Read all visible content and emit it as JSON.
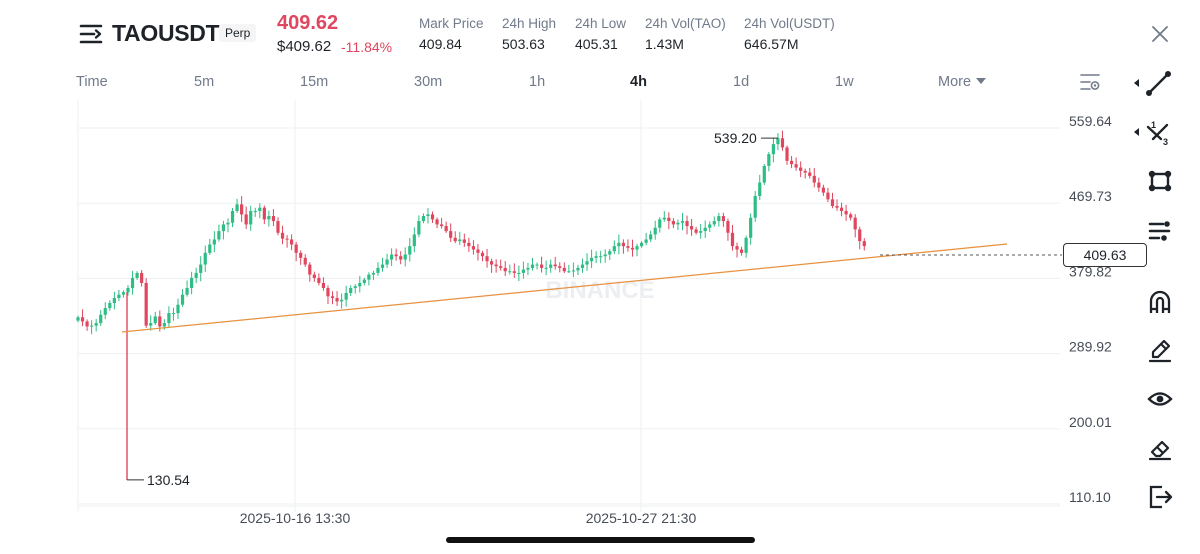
{
  "header": {
    "symbol": "TAOUSDT",
    "contract_type": "Perp",
    "last_price": "409.62",
    "usd_price": "$409.62",
    "change_pct": "-11.84%",
    "stats": [
      {
        "label": "Mark Price",
        "value": "409.84"
      },
      {
        "label": "24h High",
        "value": "503.63"
      },
      {
        "label": "24h Low",
        "value": "405.31"
      },
      {
        "label": "24h Vol(TAO)",
        "value": "1.43M"
      },
      {
        "label": "24h Vol(USDT)",
        "value": "646.57M"
      }
    ]
  },
  "intervals": {
    "items": [
      "Time",
      "5m",
      "15m",
      "30m",
      "1h",
      "4h",
      "1d",
      "1w",
      "More"
    ],
    "active": "4h"
  },
  "watermark": "BINANCE",
  "toolbar": {
    "icons": [
      "trend-line-icon",
      "fibonacci-icon",
      "rectangle-shape-icon",
      "indicator-list-icon",
      "magnet-icon",
      "pencil-icon",
      "eye-icon",
      "eraser-icon",
      "exit-icon"
    ]
  },
  "colors": {
    "up": "#2ebd85",
    "down": "#e0465e",
    "trendline": "#e8913e",
    "text_muted": "#707a8a"
  },
  "chart_data": {
    "type": "candlestick",
    "symbol": "TAOUSDT",
    "interval": "4h",
    "y_ticks": [
      559.64,
      469.73,
      379.82,
      289.92,
      200.01,
      110.1
    ],
    "x_labels": [
      "2025-10-16 13:30",
      "2025-10-27 21:30"
    ],
    "ylim": [
      110.1,
      559.64
    ],
    "current_price_label": "409.63",
    "annotations": {
      "high": "539.20",
      "low": "130.54"
    },
    "close_path": [
      325,
      320,
      314,
      315,
      318,
      328,
      336,
      342,
      348,
      352,
      355,
      360,
      372,
      378,
      366,
      315,
      318,
      326,
      314,
      318,
      330,
      330,
      340,
      352,
      360,
      372,
      378,
      388,
      402,
      412,
      418,
      428,
      436,
      438,
      452,
      460,
      448,
      436,
      452,
      452,
      456,
      442,
      446,
      440,
      426,
      419,
      418,
      412,
      402,
      396,
      388,
      376,
      372,
      366,
      360,
      350,
      348,
      344,
      346,
      354,
      360,
      362,
      366,
      370,
      376,
      378,
      384,
      388,
      394,
      400,
      398,
      394,
      400,
      410,
      424,
      440,
      446,
      448,
      442,
      436,
      434,
      428,
      420,
      416,
      418,
      414,
      410,
      406,
      402,
      398,
      392,
      388,
      386,
      384,
      380,
      380,
      378,
      378,
      382,
      384,
      388,
      388,
      384,
      384,
      388,
      386,
      384,
      380,
      380,
      381,
      384,
      388,
      392,
      396,
      398,
      398,
      400,
      404,
      410,
      414,
      410,
      408,
      406,
      410,
      414,
      418,
      424,
      432,
      442,
      444,
      440,
      436,
      438,
      440,
      434,
      430,
      426,
      428,
      432,
      436,
      440,
      446,
      440,
      426,
      410,
      406,
      402,
      420,
      444,
      470,
      486,
      506,
      520,
      532,
      539,
      528,
      512,
      508,
      504,
      500,
      498,
      494,
      486,
      480,
      474,
      466,
      458,
      456,
      452,
      448,
      444,
      430,
      416,
      410
    ]
  }
}
